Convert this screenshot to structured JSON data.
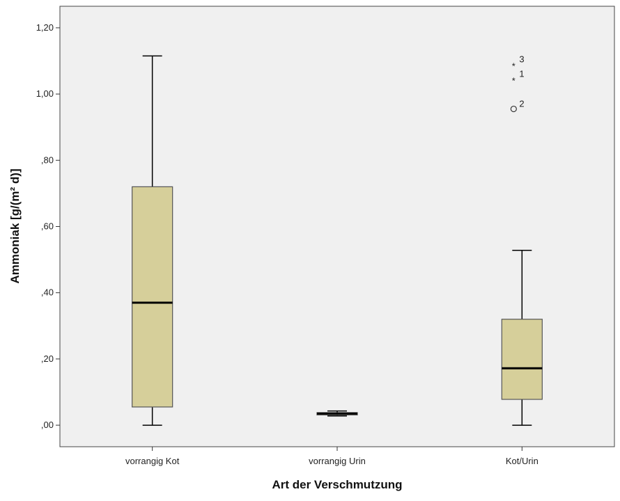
{
  "colors": {
    "plot_background": "#f0f0f0",
    "box_fill": "#d6cf9a",
    "line": "#000000",
    "outline": "#444444"
  },
  "chart_data": {
    "type": "boxplot",
    "xlabel": "Art der Verschmutzung",
    "ylabel": "Ammoniak [g/(m² d)]",
    "ylim": [
      -0.065,
      1.265
    ],
    "yticks": [
      0.0,
      0.2,
      0.4,
      0.6,
      0.8,
      1.0,
      1.2
    ],
    "ytick_labels": [
      ",00",
      ",20",
      ",40",
      ",60",
      ",80",
      "1,00",
      "1,20"
    ],
    "grid": false,
    "categories": [
      "vorrangig Kot",
      "vorrangig Urin",
      "Kot/Urin"
    ],
    "boxes": [
      {
        "category": "vorrangig Kot",
        "whisker_low": 0.0,
        "q1": 0.055,
        "median": 0.37,
        "q3": 0.72,
        "whisker_high": 1.115,
        "outliers": []
      },
      {
        "category": "vorrangig Urin",
        "whisker_low": 0.028,
        "q1": 0.031,
        "median": 0.035,
        "q3": 0.038,
        "whisker_high": 0.043,
        "outliers": []
      },
      {
        "category": "Kot/Urin",
        "whisker_low": 0.0,
        "q1": 0.078,
        "median": 0.172,
        "q3": 0.32,
        "whisker_high": 0.528,
        "outliers": [
          {
            "value": 1.09,
            "label": "3",
            "marker": "star"
          },
          {
            "value": 1.045,
            "label": "1",
            "marker": "star"
          },
          {
            "value": 0.955,
            "label": "2",
            "marker": "circle"
          }
        ]
      }
    ]
  }
}
